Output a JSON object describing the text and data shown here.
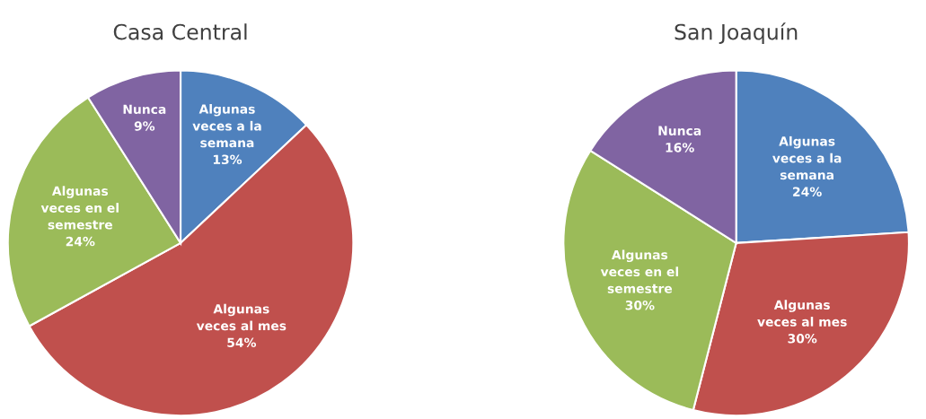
{
  "chart_data": [
    {
      "type": "pie",
      "title": "Casa Central",
      "categories": [
        "Algunas veces a la semana",
        "Algunas veces al mes",
        "Algunas veces en el semestre",
        "Nunca"
      ],
      "values": [
        13,
        54,
        24,
        9
      ],
      "value_labels": [
        "13%",
        "54%",
        "24%",
        "9%"
      ],
      "colors": [
        "#4f81bd",
        "#c0504d",
        "#9bbb59",
        "#8064a2"
      ],
      "legend": false
    },
    {
      "type": "pie",
      "title": "San Joaquín",
      "categories": [
        "Algunas veces a la semana",
        "Algunas veces al mes",
        "Algunas veces en el semestre",
        "Nunca"
      ],
      "values": [
        24,
        30,
        30,
        16
      ],
      "value_labels": [
        "24%",
        "30%",
        "30%",
        "16%"
      ],
      "colors": [
        "#4f81bd",
        "#c0504d",
        "#9bbb59",
        "#8064a2"
      ],
      "legend": false
    }
  ]
}
